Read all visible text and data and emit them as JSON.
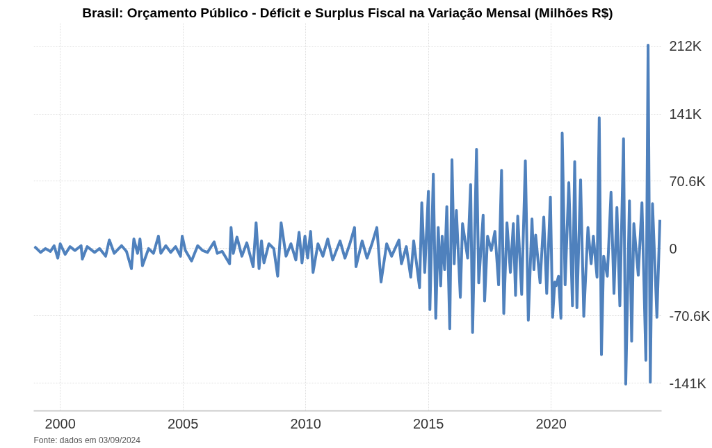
{
  "chart_data": {
    "type": "line",
    "title": "Brasil: Orçamento Público - Déficit e Surplus Fiscal na Variação Mensal (Milhões R$)",
    "annotations": [
      "Fonte: dados em 03/09/2024"
    ],
    "x": [
      1998.95,
      1999.04,
      1999.2,
      1999.4,
      1999.6,
      1999.75,
      1999.9,
      2000.0,
      2000.2,
      2000.4,
      2000.6,
      2000.85,
      2000.9,
      2001.1,
      2001.4,
      2001.6,
      2001.85,
      2002.0,
      2002.2,
      2002.5,
      2002.7,
      2002.9,
      2003.0,
      2003.15,
      2003.25,
      2003.35,
      2003.6,
      2003.8,
      2004.0,
      2004.1,
      2004.3,
      2004.5,
      2004.7,
      2004.9,
      2004.97,
      2005.1,
      2005.35,
      2005.6,
      2005.8,
      2006.0,
      2006.27,
      2006.4,
      2006.6,
      2006.9,
      2006.96,
      2007.05,
      2007.2,
      2007.4,
      2007.6,
      2007.86,
      2007.98,
      2008.1,
      2008.2,
      2008.3,
      2008.5,
      2008.7,
      2008.86,
      2009.0,
      2009.2,
      2009.4,
      2009.6,
      2009.73,
      2009.85,
      2009.97,
      2010.08,
      2010.2,
      2010.3,
      2010.5,
      2010.7,
      2010.9,
      2011.1,
      2011.4,
      2011.6,
      2011.8,
      2011.99,
      2012.05,
      2012.3,
      2012.5,
      2012.7,
      2012.9,
      2013.07,
      2013.3,
      2013.5,
      2013.8,
      2013.9,
      2014.1,
      2014.28,
      2014.4,
      2014.64,
      2014.73,
      2014.85,
      2015.0,
      2015.06,
      2015.2,
      2015.3,
      2015.4,
      2015.5,
      2015.56,
      2015.66,
      2015.75,
      2015.87,
      2015.96,
      2016.05,
      2016.14,
      2016.3,
      2016.39,
      2016.6,
      2016.72,
      2016.8,
      2016.96,
      2017.05,
      2017.23,
      2017.29,
      2017.41,
      2017.56,
      2017.71,
      2017.86,
      2017.98,
      2018.07,
      2018.2,
      2018.34,
      2018.46,
      2018.55,
      2018.64,
      2018.8,
      2018.95,
      2019.07,
      2019.22,
      2019.3,
      2019.37,
      2019.55,
      2019.7,
      2019.82,
      2019.97,
      2020.06,
      2020.15,
      2020.2,
      2020.3,
      2020.4,
      2020.45,
      2020.57,
      2020.72,
      2020.87,
      2020.96,
      2021.05,
      2021.2,
      2021.33,
      2021.5,
      2021.63,
      2021.72,
      2021.87,
      2021.96,
      2022.05,
      2022.14,
      2022.29,
      2022.44,
      2022.56,
      2022.68,
      2022.8,
      2022.95,
      2023.04,
      2023.19,
      2023.28,
      2023.37,
      2023.55,
      2023.7,
      2023.86,
      2023.95,
      2024.04,
      2024.13,
      2024.31,
      2024.43
    ],
    "series": [
      {
        "color": "#4f81bd",
        "values": [
          2000,
          0,
          -4000,
          0,
          -3000,
          3000,
          -10000,
          5000,
          -6000,
          2000,
          -2000,
          3000,
          -11000,
          2000,
          -4000,
          0,
          -8000,
          9000,
          -5000,
          3000,
          -3000,
          -21000,
          10000,
          -5000,
          10000,
          -18000,
          0,
          -5000,
          13000,
          -5000,
          3000,
          -4000,
          2000,
          -8000,
          13000,
          -2000,
          -13000,
          3000,
          -2000,
          -4000,
          7000,
          -5000,
          -3000,
          -16000,
          22000,
          -5000,
          12000,
          -8000,
          6000,
          -19000,
          27000,
          -21000,
          8000,
          -15000,
          5000,
          0,
          -29000,
          27000,
          -8000,
          5000,
          -12000,
          17000,
          -15000,
          13000,
          -10000,
          18000,
          -25000,
          5000,
          -8000,
          10000,
          -12000,
          8000,
          -10000,
          5000,
          22000,
          -19000,
          8000,
          -10000,
          5000,
          22000,
          -35000,
          5000,
          -8000,
          9000,
          -16000,
          2000,
          -30000,
          8000,
          -41000,
          48000,
          -25000,
          60000,
          -64000,
          78000,
          -73000,
          22000,
          -39000,
          13000,
          -22000,
          44000,
          -84000,
          93000,
          -16000,
          40000,
          -51000,
          26000,
          -10000,
          67000,
          -88000,
          104000,
          -36000,
          35000,
          -55000,
          13000,
          -2000,
          18000,
          -38000,
          82000,
          -68000,
          27000,
          -25000,
          26000,
          -49000,
          34000,
          -48000,
          92000,
          -75000,
          31000,
          -22000,
          14000,
          -36000,
          33000,
          -47000,
          54000,
          -72000,
          -35000,
          -39000,
          -29000,
          -73000,
          121000,
          -38000,
          69000,
          -60000,
          91000,
          -62000,
          72000,
          -71000,
          22000,
          -16000,
          13000,
          -30000,
          137000,
          -111000,
          -8000,
          -29000,
          59000,
          -47000,
          43000,
          -60000,
          115000,
          -142000,
          50000,
          -97000,
          26000,
          -28000,
          48000,
          -117000,
          213000,
          -140000,
          47000,
          -72000,
          30000
        ]
      }
    ],
    "xlim": [
      1998.92,
      2024.5
    ],
    "xticks": [
      2000,
      2005,
      2010,
      2015,
      2020
    ],
    "ylim": [
      -170000,
      236000
    ],
    "yticks": [
      {
        "value": -141000,
        "label": "-141K"
      },
      {
        "value": -70600,
        "label": "-70.6K"
      },
      0,
      {
        "value": 70600,
        "label": "70.6K"
      },
      {
        "value": 141000,
        "label": "141K"
      },
      {
        "value": 212000,
        "label": "212K"
      }
    ],
    "grid": true,
    "line_style": "solid",
    "marker": "none"
  }
}
